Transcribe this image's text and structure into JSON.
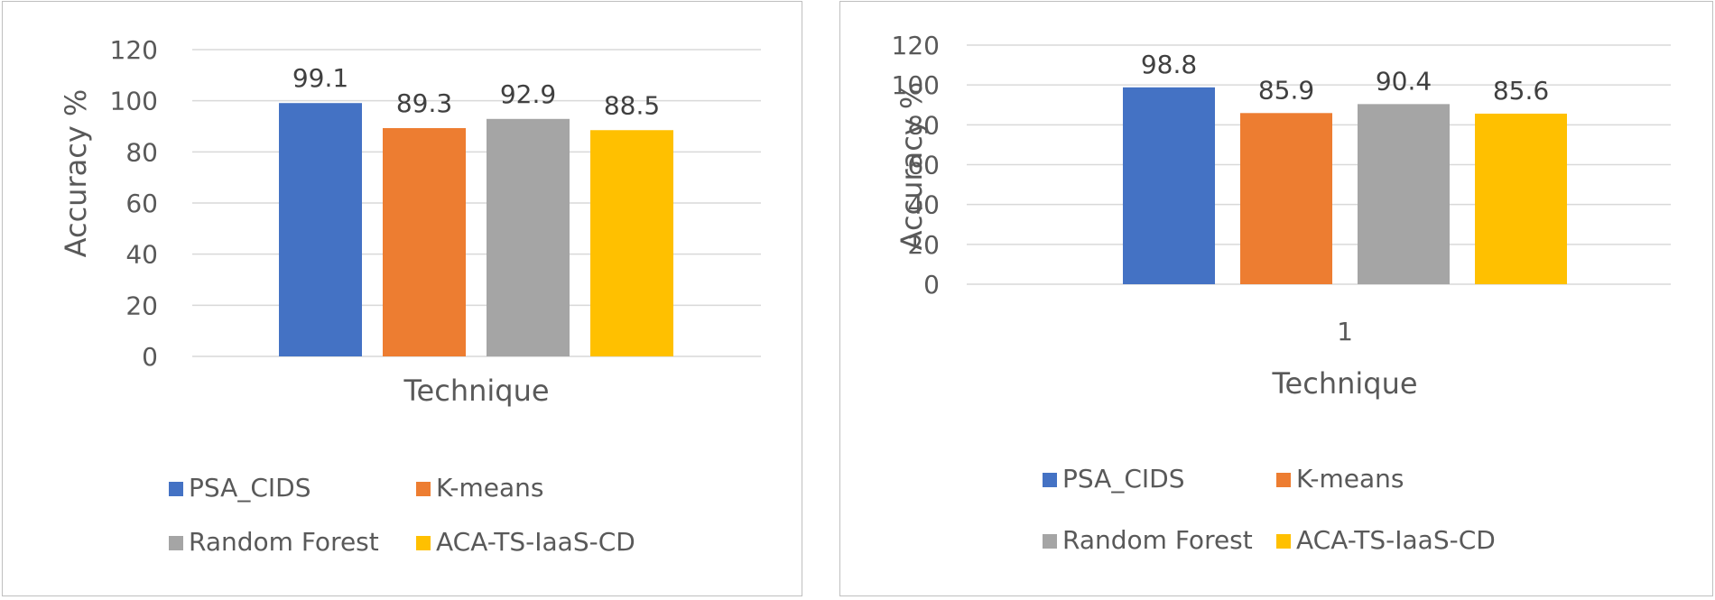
{
  "chart_data": [
    {
      "type": "bar",
      "categories": [
        "PSA_CIDS",
        "K-means",
        "Random Forest",
        "ACA-TS-IaaS-CD"
      ],
      "values": [
        99.1,
        89.3,
        92.9,
        88.5
      ],
      "data_labels": [
        "99.1",
        "89.3",
        "92.9",
        "88.5"
      ],
      "colors": [
        "#4472c4",
        "#ed7d31",
        "#a5a5a5",
        "#ffc000"
      ],
      "title": "",
      "xlabel": "Technique",
      "ylabel": "Accuracy %",
      "x_tick_label": "",
      "ylim": [
        0,
        120
      ],
      "yticks": [
        "0",
        "20",
        "40",
        "60",
        "80",
        "100",
        "120"
      ],
      "grid": true,
      "legend": [
        "PSA_CIDS",
        "K-means",
        "Random Forest",
        "ACA-TS-IaaS-CD"
      ],
      "legend_position": "bottom"
    },
    {
      "type": "bar",
      "categories": [
        "PSA_CIDS",
        "K-means",
        "Random Forest",
        "ACA-TS-IaaS-CD"
      ],
      "values": [
        98.8,
        85.9,
        90.4,
        85.6
      ],
      "data_labels": [
        "98.8",
        "85.9",
        "90.4",
        "85.6"
      ],
      "colors": [
        "#4472c4",
        "#ed7d31",
        "#a5a5a5",
        "#ffc000"
      ],
      "title": "",
      "xlabel": "Technique",
      "ylabel": "Accuracy %",
      "x_tick_label": "1",
      "ylim": [
        0,
        120
      ],
      "yticks": [
        "0",
        "20",
        "40",
        "60",
        "80",
        "100",
        "120"
      ],
      "grid": true,
      "legend": [
        "PSA_CIDS",
        "K-means",
        "Random Forest",
        "ACA-TS-IaaS-CD"
      ],
      "legend_position": "bottom"
    }
  ]
}
